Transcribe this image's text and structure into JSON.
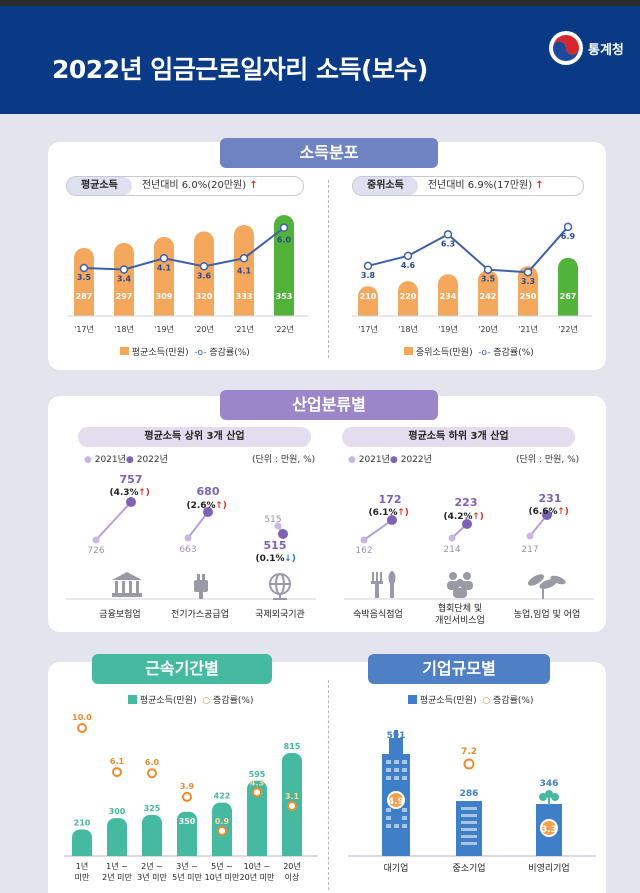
{
  "header": {
    "title": "2022년 임금근로일자리 소득(보수)",
    "agency": "통계청"
  },
  "income": {
    "section_title": "소득분포",
    "legend_pct": "증감률(%)",
    "mean": {
      "label": "평균소득",
      "note": "전년대비 6.0%(20만원)",
      "legend_bar": "평균소득(만원)",
      "years": [
        "'17년",
        "'18년",
        "'19년",
        "'20년",
        "'21년",
        "'22년"
      ],
      "values": [
        287,
        297,
        309,
        320,
        333,
        353
      ],
      "rates": [
        3.5,
        3.4,
        4.1,
        3.6,
        4.1,
        6.0
      ]
    },
    "median": {
      "label": "중위소득",
      "note": "전년대비 6.9%(17만원)",
      "legend_bar": "중위소득(만원)",
      "years": [
        "'17년",
        "'18년",
        "'19년",
        "'20년",
        "'21년",
        "'22년"
      ],
      "values": [
        210,
        220,
        234,
        242,
        250,
        267
      ],
      "rates": [
        3.8,
        4.6,
        6.3,
        3.5,
        3.3,
        6.9
      ]
    }
  },
  "industry": {
    "section_title": "산업분류별",
    "legend_2021": "2021년",
    "legend_2022": "2022년",
    "unit": "(단위 : 만원, %)",
    "top": {
      "title": "평균소득 상위 3개 산업",
      "items": [
        {
          "label": "금융보험업",
          "v2021": "726",
          "v2022": "757",
          "rate": "(4.3%",
          "dir": "up"
        },
        {
          "label": "전기가스공급업",
          "v2021": "663",
          "v2022": "680",
          "rate": "(2.6%",
          "dir": "up"
        },
        {
          "label": "국제외국기관",
          "v2021": "515",
          "v2022": "515",
          "rate": "(0.1%",
          "dir": "down"
        }
      ]
    },
    "bottom": {
      "title": "평균소득 하위 3개 산업",
      "items": [
        {
          "label": "숙박음식점업",
          "v2021": "162",
          "v2022": "172",
          "rate": "(6.1%",
          "dir": "up"
        },
        {
          "label1": "협회단체 및",
          "label2": "개인서비스업",
          "v2021": "214",
          "v2022": "223",
          "rate": "(4.2%",
          "dir": "up"
        },
        {
          "label": "농업,임업 및 어업",
          "v2021": "217",
          "v2022": "231",
          "rate": "(6.6%",
          "dir": "up"
        }
      ]
    },
    "arrow_close": ")"
  },
  "tenure": {
    "section_title": "근속기간별",
    "legend_bar": "평균소득(만원)",
    "legend_rate": "증감률(%)",
    "chart_data": {
      "type": "bar",
      "categories": [
        "1년 미만",
        "1년 ~ 2년 미만",
        "2년 ~ 3년 미만",
        "3년 ~ 5년 미만",
        "5년 ~ 10년 미만",
        "10년 ~ 20년 미만",
        "20년 이상"
      ],
      "values": [
        210,
        300,
        325,
        350,
        422,
        595,
        815
      ],
      "rates": [
        10.0,
        6.1,
        6.0,
        3.9,
        0.9,
        4.3,
        3.1
      ],
      "cat_lines": [
        [
          "1년",
          "미만"
        ],
        [
          "1년 ~",
          "2년 미만"
        ],
        [
          "2년 ~",
          "3년 미만"
        ],
        [
          "3년 ~",
          "5년 미만"
        ],
        [
          "5년 ~",
          "10년 미만"
        ],
        [
          "10년 ~",
          "20년 미만"
        ],
        [
          "20년",
          "이상"
        ]
      ]
    }
  },
  "firmsize": {
    "section_title": "기업규모별",
    "legend_bar": "평균소득(만원)",
    "legend_rate": "증감률(%)",
    "chart_data": {
      "type": "bar",
      "categories": [
        "대기업",
        "중소기업",
        "비영리기업"
      ],
      "values": [
        591,
        286,
        346
      ],
      "rates": [
        4.9,
        7.2,
        3.3
      ]
    }
  },
  "colors": {
    "navy": "#0a3a86",
    "orange": "#f4a85e",
    "green": "#52b33b",
    "line": "#3f5fa8",
    "purple": "#9b86c9",
    "purple_light": "#c7b8e3",
    "teal": "#46b9a1",
    "blue": "#3f7fc8",
    "rate": "#f08a2c"
  }
}
